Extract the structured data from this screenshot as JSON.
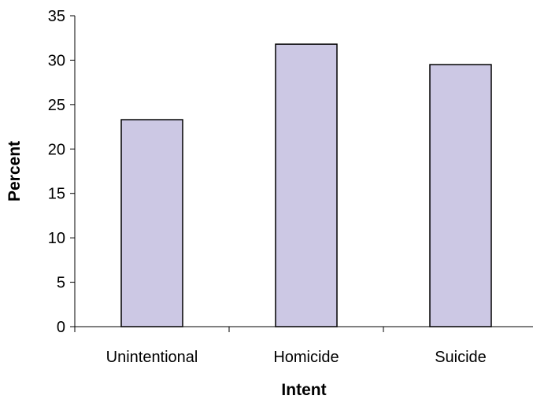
{
  "chart_data": {
    "type": "bar",
    "categories": [
      "Unintentional",
      "Homicide",
      "Suicide"
    ],
    "values": [
      23.3,
      31.8,
      29.5
    ],
    "title": "",
    "xlabel": "Intent",
    "ylabel": "Percent",
    "ylim": [
      0,
      35
    ],
    "yticks": [
      "0",
      "5",
      "10",
      "15",
      "20",
      "25",
      "30",
      "35"
    ],
    "grid": false,
    "legend": "none",
    "colors": {
      "bar_fill": "#ccc8e4",
      "bar_stroke": "#000000",
      "axis": "#000000"
    }
  }
}
